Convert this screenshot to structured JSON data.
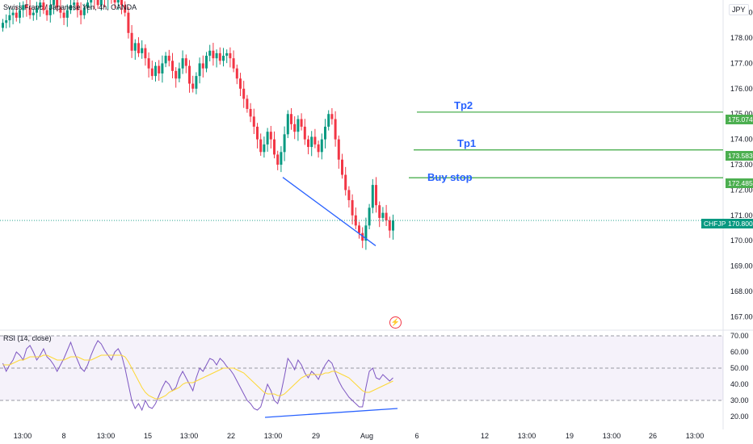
{
  "legend": {
    "text": "Swiss Franc / Japanese Yen, 4h, OANDA"
  },
  "currency": "JPY",
  "rsi_legend": "RSI (14, close)",
  "labels": {
    "tp2": "Tp2",
    "tp1": "Tp1",
    "buy_stop": "Buy stop"
  },
  "price_tags": {
    "tp2": "175.074",
    "tp1": "173.583",
    "buy_stop": "172.485",
    "symbol": "CHFJPY",
    "current": "170.800"
  },
  "colors": {
    "up": "#089981",
    "down": "#f23645",
    "level": "#4caf50",
    "trend": "#2962ff",
    "rsi": "#7e57c2",
    "rsi_ma": "#fdd835"
  },
  "chart_data": [
    {
      "type": "candlestick",
      "title": "Swiss Franc / Japanese Yen, 4h, OANDA",
      "ylim": [
        166.5,
        179.5
      ],
      "y_ticks": [
        167.0,
        168.0,
        169.0,
        170.0,
        171.0,
        172.0,
        173.0,
        174.0,
        175.0,
        176.0,
        177.0,
        178.0,
        179.0
      ],
      "x_ticks": [
        "13:00",
        "8",
        "13:00",
        "15",
        "13:00",
        "22",
        "13:00",
        "29",
        "Aug",
        "6",
        "12",
        "13:00",
        "19",
        "13:00",
        "26",
        "13:00"
      ],
      "closes": [
        178.6,
        178.7,
        178.9,
        179.0,
        178.8,
        179.1,
        179.3,
        179.2,
        178.9,
        179.0,
        179.2,
        179.4,
        179.1,
        178.9,
        179.3,
        179.5,
        179.2,
        179.0,
        178.8,
        179.1,
        179.3,
        179.4,
        179.1,
        178.9,
        179.2,
        179.4,
        179.6,
        179.5,
        179.3,
        179.6,
        179.5,
        179.6,
        179.5,
        179.4,
        179.5,
        179.3,
        179.0,
        178.2,
        177.5,
        177.8,
        177.4,
        177.6,
        177.2,
        176.8,
        176.5,
        176.9,
        176.6,
        177.0,
        177.3,
        177.1,
        176.7,
        176.4,
        176.8,
        177.2,
        176.9,
        176.2,
        176.0,
        176.5,
        177.0,
        176.8,
        177.3,
        177.5,
        177.2,
        177.4,
        177.1,
        177.3,
        177.4,
        177.2,
        176.8,
        176.4,
        176.0,
        175.6,
        175.2,
        174.9,
        174.5,
        174.0,
        173.5,
        173.8,
        174.3,
        174.0,
        173.4,
        173.0,
        173.5,
        174.2,
        175.0,
        174.6,
        174.3,
        174.8,
        174.5,
        174.0,
        173.7,
        174.1,
        173.8,
        173.5,
        174.0,
        174.5,
        175.0,
        174.8,
        174.0,
        173.2,
        172.6,
        172.0,
        171.6,
        171.0,
        170.6,
        170.3,
        170.0,
        170.6,
        171.3,
        172.2,
        171.4,
        170.9,
        171.1,
        170.8,
        170.4,
        170.8
      ],
      "trend_line": {
        "from": [
          "172.5 at Jul 25",
          ""
        ],
        "to": [
          "169.8 at Aug 1",
          ""
        ]
      },
      "levels": [
        {
          "label": "Tp2",
          "value": 175.074
        },
        {
          "label": "Tp1",
          "value": 173.583
        },
        {
          "label": "Buy stop",
          "value": 172.485
        }
      ],
      "current": 170.8
    },
    {
      "type": "line",
      "title": "RSI (14, close)",
      "ylim": [
        15,
        72
      ],
      "y_ticks": [
        20.0,
        30.0,
        40.0,
        50.0,
        60.0,
        70.0
      ],
      "bands": [
        70,
        50,
        30
      ],
      "series": [
        {
          "values": [
            53,
            48,
            52,
            55,
            60,
            58,
            55,
            62,
            64,
            60,
            55,
            58,
            62,
            57,
            55,
            52,
            48,
            52,
            56,
            61,
            66,
            60,
            55,
            50,
            48,
            52,
            58,
            63,
            67,
            65,
            61,
            58,
            55,
            60,
            62,
            58,
            50,
            40,
            30,
            25,
            28,
            24,
            30,
            26,
            25,
            28,
            33,
            38,
            42,
            40,
            36,
            38,
            44,
            48,
            44,
            40,
            36,
            44,
            50,
            48,
            52,
            56,
            55,
            52,
            56,
            54,
            51,
            49,
            46,
            42,
            38,
            34,
            30,
            28,
            25,
            24,
            26,
            33,
            40,
            36,
            30,
            28,
            35,
            45,
            56,
            53,
            49,
            55,
            52,
            47,
            44,
            48,
            46,
            43,
            48,
            52,
            55,
            53,
            47,
            42,
            38,
            35,
            32,
            30,
            28,
            26,
            26,
            38,
            48,
            50,
            44,
            43,
            46,
            44,
            42,
            44
          ]
        },
        {
          "values": [
            52,
            52,
            52,
            53,
            54,
            55,
            55,
            56,
            57,
            57,
            57,
            57,
            58,
            58,
            57,
            56,
            55,
            55,
            55,
            56,
            57,
            57,
            57,
            56,
            55,
            55,
            55,
            56,
            57,
            58,
            58,
            58,
            58,
            58,
            58,
            58,
            57,
            54,
            50,
            46,
            42,
            38,
            35,
            33,
            32,
            31,
            31,
            32,
            33,
            35,
            36,
            37,
            38,
            40,
            41,
            41,
            41,
            42,
            43,
            44,
            45,
            46,
            47,
            48,
            49,
            50,
            50,
            50,
            50,
            49,
            48,
            47,
            45,
            43,
            41,
            39,
            37,
            35,
            34,
            34,
            34,
            33,
            33,
            34,
            36,
            38,
            40,
            42,
            44,
            45,
            46,
            46,
            46,
            46,
            46,
            47,
            47,
            48,
            48,
            47,
            46,
            45,
            44,
            42,
            40,
            38,
            36,
            35,
            35,
            36,
            37,
            38,
            39,
            40,
            41,
            42
          ]
        }
      ],
      "trend_line": {
        "from": "20 at Jul 24",
        "to": "25 at Aug 3"
      },
      "current_label": ""
    }
  ]
}
